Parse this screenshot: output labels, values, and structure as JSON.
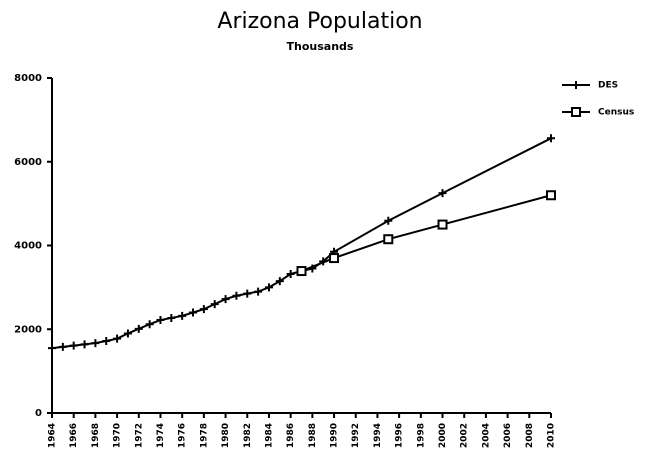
{
  "chart_data": {
    "type": "line",
    "title": "Arizona Population",
    "subtitle": "Thousands",
    "xlim": [
      1964,
      2010
    ],
    "xticks": [
      1964,
      1966,
      1968,
      1970,
      1972,
      1974,
      1976,
      1978,
      1980,
      1982,
      1984,
      1986,
      1988,
      1990,
      1992,
      1994,
      1996,
      1998,
      2000,
      2002,
      2004,
      2006,
      2008,
      2010
    ],
    "ylim": [
      0,
      8000
    ],
    "yticks": [
      0,
      2000,
      4000,
      6000,
      8000
    ],
    "legend": "top-right",
    "series": [
      {
        "name": "DES",
        "color": "#000000",
        "marker": "plus",
        "x": [
          1964,
          1965,
          1966,
          1967,
          1968,
          1969,
          1970,
          1971,
          1972,
          1973,
          1974,
          1975,
          1976,
          1977,
          1978,
          1979,
          1980,
          1981,
          1982,
          1983,
          1984,
          1985,
          1986,
          1987,
          1988,
          1989,
          1990,
          1995,
          2000,
          2010
        ],
        "values": [
          1550,
          1580,
          1610,
          1640,
          1670,
          1720,
          1775,
          1900,
          2010,
          2120,
          2220,
          2270,
          2320,
          2400,
          2480,
          2600,
          2720,
          2800,
          2850,
          2900,
          3000,
          3150,
          3320,
          3390,
          3450,
          3620,
          3850,
          4590,
          5250,
          6560
        ]
      },
      {
        "name": "Census",
        "color": "#000000",
        "marker": "square",
        "x": [
          1987,
          1990,
          1995,
          2000,
          2010
        ],
        "values": [
          3390,
          3700,
          4150,
          4500,
          5200
        ]
      }
    ]
  }
}
